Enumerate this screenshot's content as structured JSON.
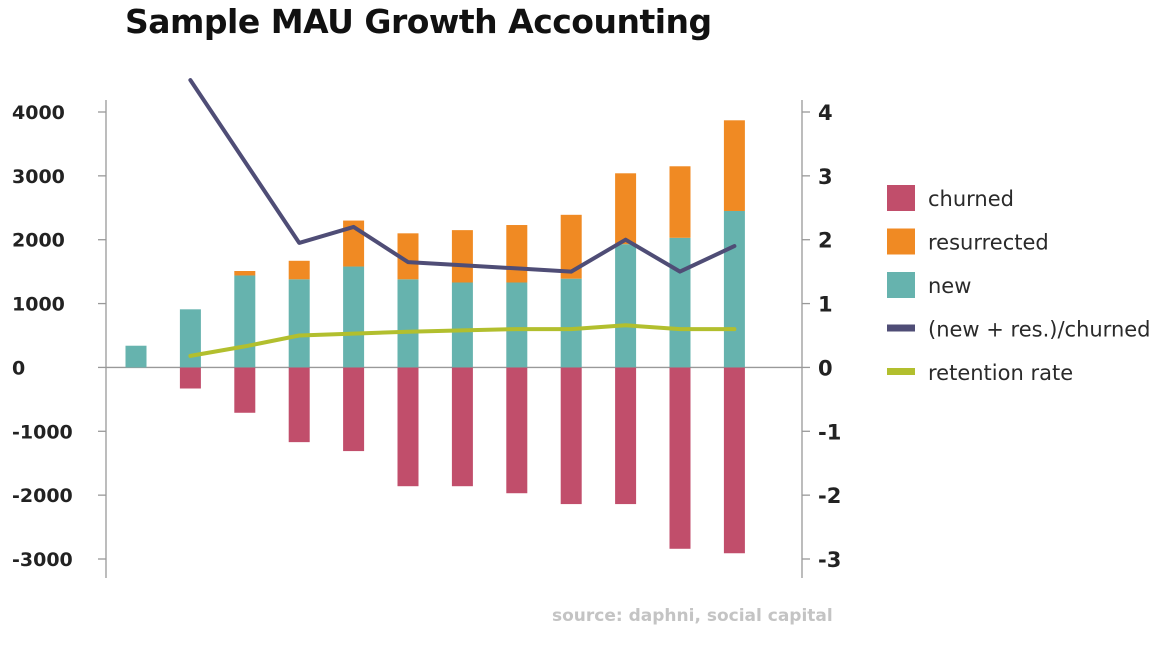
{
  "chart_data": {
    "type": "bar",
    "title": "Sample MAU Growth Accounting",
    "source": "source: daphni, social capital",
    "categories": [
      "",
      "",
      "",
      "",
      "",
      "",
      "",
      "",
      "",
      "",
      "",
      ""
    ],
    "y_left": {
      "ylim": [
        -3000,
        4000
      ],
      "ticks": [
        "4000",
        "3000",
        "2000",
        "1000",
        "0",
        "-1000",
        "-2000",
        "-3000"
      ],
      "tick_values": [
        4000,
        3000,
        2000,
        1000,
        0,
        -1000,
        -2000,
        -3000
      ]
    },
    "y_right": {
      "ylim": [
        -3,
        4
      ],
      "ticks": [
        "4",
        "3",
        "2",
        "1",
        "0",
        "-1",
        "-2",
        "-3"
      ],
      "tick_values": [
        4,
        3,
        2,
        1,
        0,
        -1,
        -2,
        -3
      ]
    },
    "series": [
      {
        "name": "churned",
        "kind": "bar",
        "axis": "left",
        "color": "#c14e6b",
        "values": [
          0,
          -330,
          -710,
          -1170,
          -1310,
          -1860,
          -1860,
          -1970,
          -2140,
          -2140,
          -2840,
          -2910
        ]
      },
      {
        "name": "resurrected",
        "kind": "bar",
        "axis": "left",
        "color": "#f08a23",
        "values": [
          0,
          0,
          70,
          290,
          720,
          720,
          820,
          900,
          1000,
          1110,
          1120,
          1420
        ]
      },
      {
        "name": "new",
        "kind": "bar",
        "axis": "left",
        "color": "#66b3ae",
        "values": [
          340,
          910,
          1440,
          1380,
          1580,
          1380,
          1330,
          1330,
          1390,
          1930,
          2030,
          2450
        ]
      },
      {
        "name": "(new + res.)/churned",
        "kind": "line",
        "axis": "right",
        "color": "#4f4d76",
        "values": [
          null,
          4.5,
          null,
          1.95,
          2.2,
          1.65,
          1.6,
          1.55,
          1.5,
          2.0,
          1.5,
          1.9
        ]
      },
      {
        "name": "retention rate",
        "kind": "line",
        "axis": "right",
        "color": "#b2bf2e",
        "values": [
          null,
          0.18,
          0.33,
          0.5,
          0.53,
          0.56,
          0.58,
          0.6,
          0.6,
          0.66,
          0.6,
          0.6
        ]
      }
    ],
    "legend": {
      "position": "right",
      "items": [
        {
          "label": "churned",
          "color": "#c14e6b"
        },
        {
          "label": "resurrected",
          "color": "#f08a23"
        },
        {
          "label": "new",
          "color": "#66b3ae"
        },
        {
          "label": "(new + res.)/churned",
          "color": "#4f4d76"
        },
        {
          "label": "retention rate",
          "color": "#b2bf2e"
        }
      ]
    },
    "grid": false
  }
}
